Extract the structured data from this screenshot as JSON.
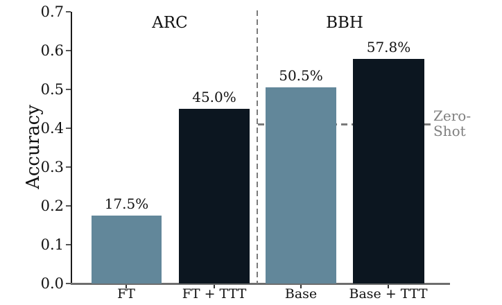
{
  "chart_data": {
    "type": "bar",
    "ylabel": "Accuracy",
    "ylim": [
      0,
      0.7
    ],
    "yticks": [
      "0.0",
      "0.1",
      "0.2",
      "0.3",
      "0.4",
      "0.5",
      "0.6",
      "0.7"
    ],
    "grid": false,
    "legend": "none",
    "groups": [
      {
        "title": "ARC",
        "bars": [
          {
            "category": "FT",
            "value": 0.175,
            "label": "17.5%",
            "color": "#62879a"
          },
          {
            "category": "FT + TTT",
            "value": 0.45,
            "label": "45.0%",
            "color": "#0c1620"
          }
        ]
      },
      {
        "title": "BBH",
        "bars": [
          {
            "category": "Base",
            "value": 0.505,
            "label": "50.5%",
            "color": "#62879a"
          },
          {
            "category": "Base + TTT",
            "value": 0.578,
            "label": "57.8%",
            "color": "#0c1620"
          }
        ]
      }
    ],
    "reference_line": {
      "value": 0.41,
      "label_line1": "Zero-",
      "label_line2": "Shot",
      "color": "#7a7a7a",
      "text_color": "#7f7f7f"
    },
    "colors": {
      "bar_muted": "#62879a",
      "bar_dark": "#0c1620",
      "left_spine": "#1a1a1a",
      "bottom_spine": "#6e6e6e",
      "divider": "#7a7a7a"
    }
  }
}
